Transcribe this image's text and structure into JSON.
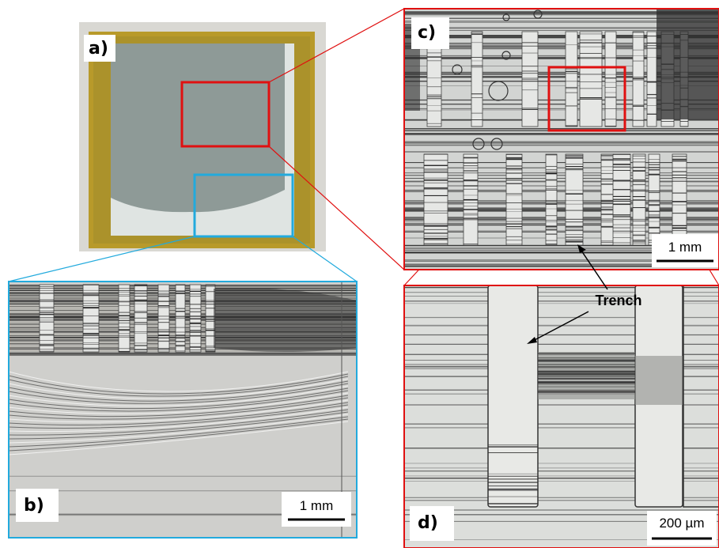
{
  "panels": [
    {
      "label": "a)"
    },
    {
      "label": "b)",
      "scale_bar": "1 mm"
    },
    {
      "label": "c)",
      "scale_bar": "1 mm"
    },
    {
      "label": "d)",
      "scale_bar": "200 µm",
      "annotation": "Trench"
    }
  ]
}
